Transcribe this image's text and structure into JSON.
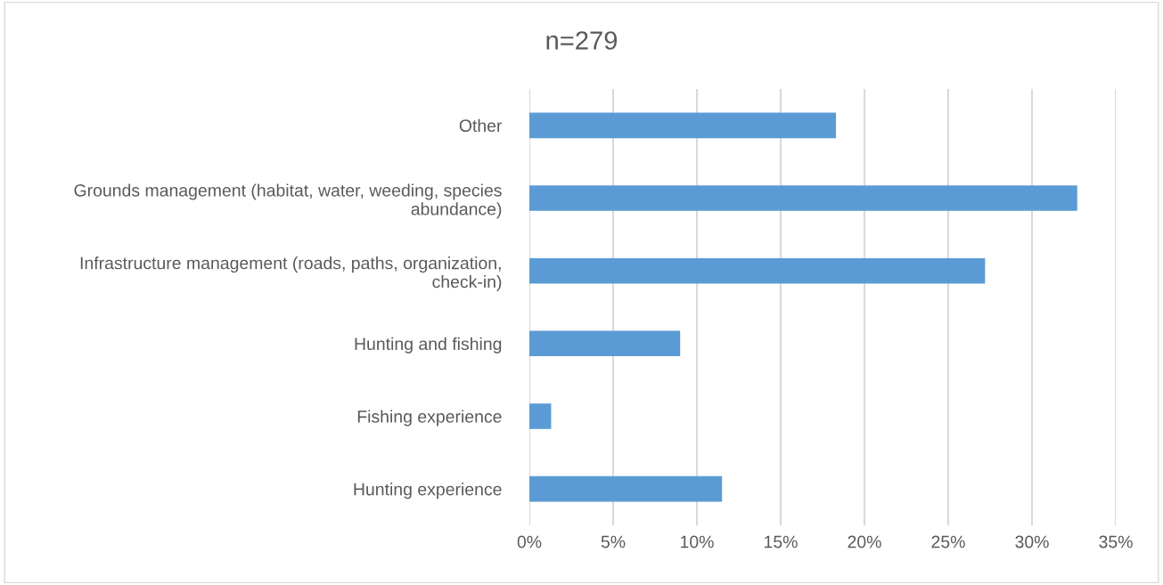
{
  "chart_data": {
    "type": "bar",
    "orientation": "horizontal",
    "title": "n=279",
    "categories": [
      "Other",
      "Grounds management (habitat, water, weeding, species\nabundance)",
      "Infrastructure management (roads, paths, organization,\ncheck-in)",
      "Hunting and fishing",
      "Fishing experience",
      "Hunting experience"
    ],
    "values": [
      18.3,
      32.7,
      27.2,
      9.0,
      1.3,
      11.5
    ],
    "color": "#5b9bd5",
    "xlim": [
      0,
      35
    ],
    "xticks": [
      {
        "value": 0,
        "label": "0%"
      },
      {
        "value": 5,
        "label": "5%"
      },
      {
        "value": 10,
        "label": "10%"
      },
      {
        "value": 15,
        "label": "15%"
      },
      {
        "value": 20,
        "label": "20%"
      },
      {
        "value": 25,
        "label": "25%"
      },
      {
        "value": 30,
        "label": "30%"
      },
      {
        "value": 35,
        "label": "35%"
      }
    ],
    "grid": "x",
    "legend": false
  }
}
